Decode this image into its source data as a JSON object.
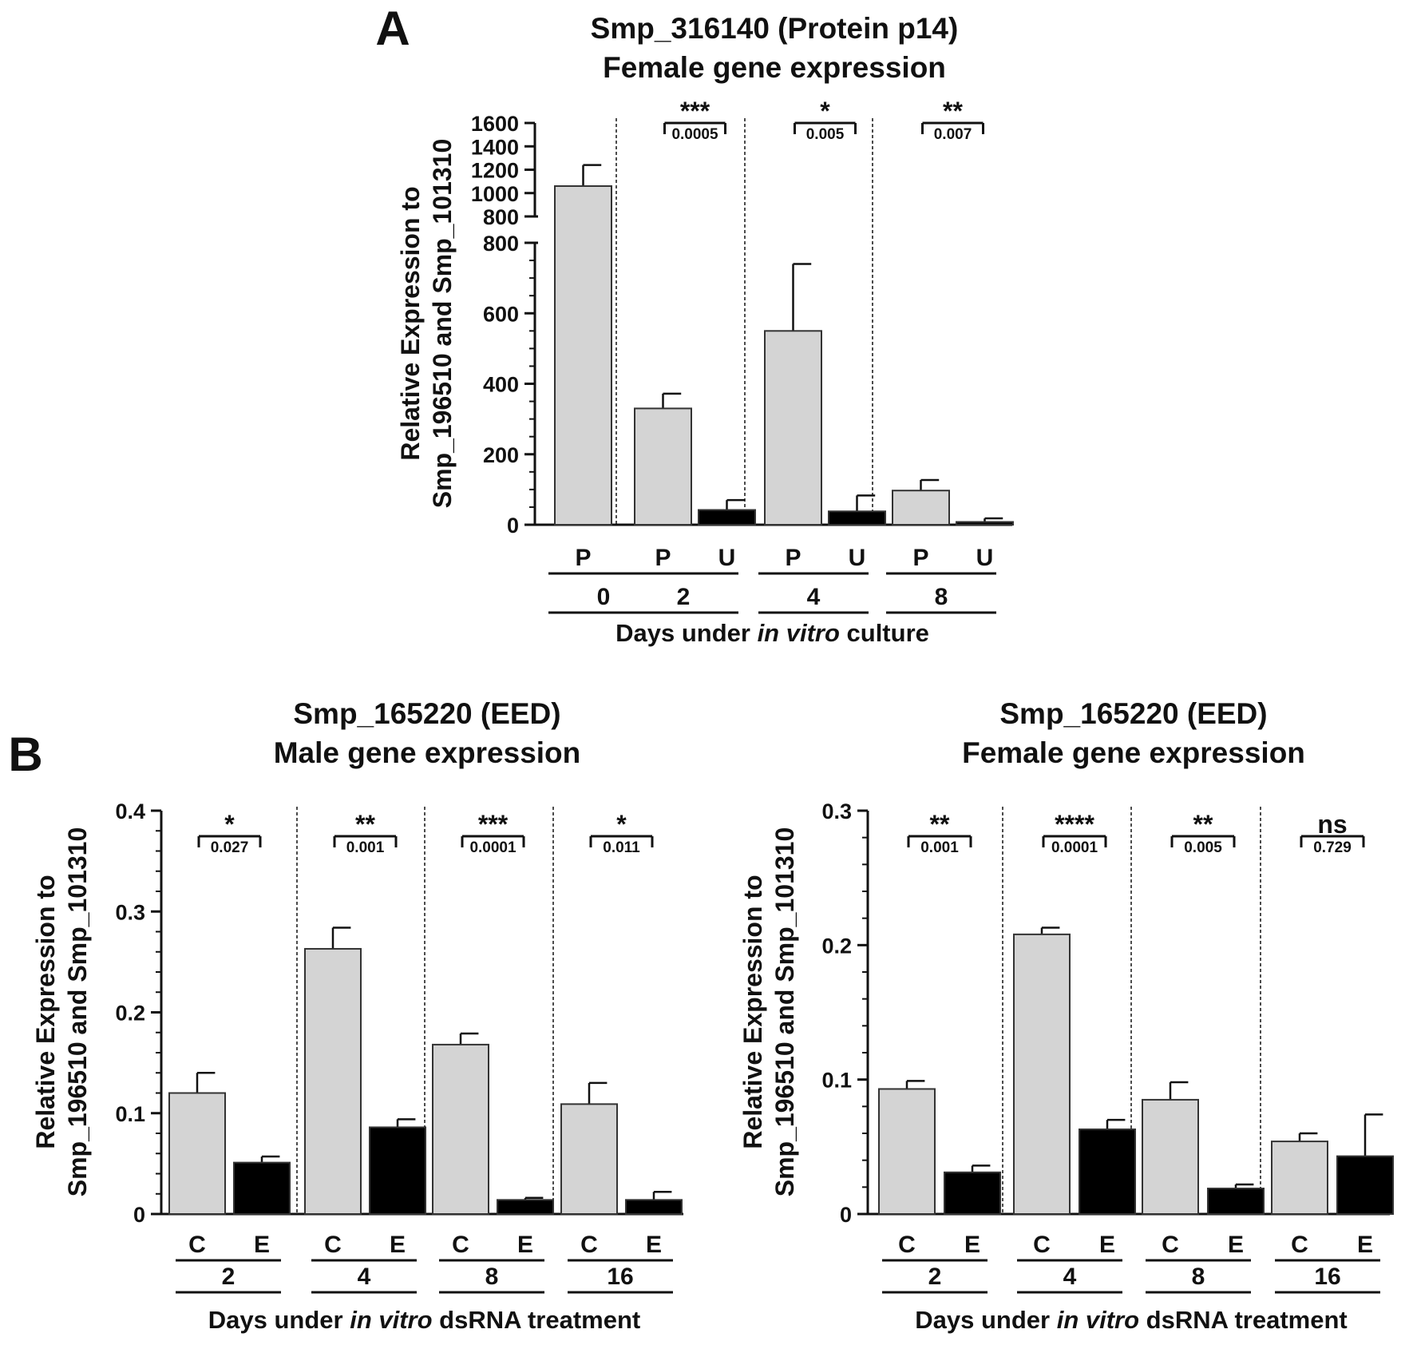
{
  "chart_data": [
    {
      "panel": "A",
      "type": "bar",
      "title": [
        "Smp_316140 (Protein p14)",
        "Female gene expression"
      ],
      "ylabel": [
        "Relative Expression to",
        "Smp_196510 and Smp_101310"
      ],
      "xlabel": {
        "prefix": "Days under ",
        "italic": "in vitro",
        "suffix": " culture"
      },
      "y_axis": {
        "broken": true,
        "lower_range": [
          0,
          800
        ],
        "lower_ticks": [
          0,
          200,
          400,
          600,
          800
        ],
        "upper_range": [
          800,
          1600
        ],
        "upper_ticks": [
          800,
          1000,
          1200,
          1400,
          1600
        ]
      },
      "series_colors": {
        "P": "#d4d4d4",
        "U": "#000000"
      },
      "groups": [
        {
          "day": "0",
          "bars": [
            {
              "label": "P",
              "value": 1060,
              "error": 180
            }
          ],
          "sig": null
        },
        {
          "day": "2",
          "bars": [
            {
              "label": "P",
              "value": 330,
              "error": 42
            },
            {
              "label": "U",
              "value": 42,
              "error": 28
            }
          ],
          "sig": {
            "stars": "***",
            "p": "0.0005"
          }
        },
        {
          "day": "4",
          "bars": [
            {
              "label": "P",
              "value": 550,
              "error": 190
            },
            {
              "label": "U",
              "value": 38,
              "error": 45
            }
          ],
          "sig": {
            "stars": "*",
            "p": "0.005"
          }
        },
        {
          "day": "8",
          "bars": [
            {
              "label": "P",
              "value": 97,
              "error": 30
            },
            {
              "label": "U",
              "value": 8,
              "error": 10
            }
          ],
          "sig": {
            "stars": "**",
            "p": "0.007"
          }
        }
      ]
    },
    {
      "panel": "B",
      "type": "bar",
      "title": [
        "Smp_165220 (EED)",
        "Male gene expression"
      ],
      "ylabel": [
        "Relative Expression to",
        "Smp_196510 and Smp_101310"
      ],
      "xlabel": {
        "prefix": "Days under ",
        "italic": "in vitro",
        "suffix": " dsRNA treatment"
      },
      "y_axis": {
        "range": [
          0,
          0.4
        ],
        "ticks": [
          0,
          0.1,
          0.2,
          0.3,
          0.4
        ],
        "tick_labels": [
          "0",
          "0.1",
          "0.2",
          "0.3",
          "0.4"
        ]
      },
      "series_colors": {
        "C": "#d4d4d4",
        "E": "#000000"
      },
      "groups": [
        {
          "day": "2",
          "bars": [
            {
              "label": "C",
              "value": 0.12,
              "error": 0.02
            },
            {
              "label": "E",
              "value": 0.051,
              "error": 0.006
            }
          ],
          "sig": {
            "stars": "*",
            "p": "0.027"
          }
        },
        {
          "day": "4",
          "bars": [
            {
              "label": "C",
              "value": 0.263,
              "error": 0.021
            },
            {
              "label": "E",
              "value": 0.086,
              "error": 0.008
            }
          ],
          "sig": {
            "stars": "**",
            "p": "0.001"
          }
        },
        {
          "day": "8",
          "bars": [
            {
              "label": "C",
              "value": 0.168,
              "error": 0.011
            },
            {
              "label": "E",
              "value": 0.014,
              "error": 0.002
            }
          ],
          "sig": {
            "stars": "***",
            "p": "0.0001"
          }
        },
        {
          "day": "16",
          "bars": [
            {
              "label": "C",
              "value": 0.109,
              "error": 0.021
            },
            {
              "label": "E",
              "value": 0.014,
              "error": 0.008
            }
          ],
          "sig": {
            "stars": "*",
            "p": "0.011"
          }
        }
      ]
    },
    {
      "panel": "",
      "type": "bar",
      "title": [
        "Smp_165220 (EED)",
        "Female gene expression"
      ],
      "ylabel": [
        "Relative Expression to",
        "Smp_196510 and Smp_101310"
      ],
      "xlabel": {
        "prefix": "Days under ",
        "italic": "in vitro",
        "suffix": " dsRNA treatment"
      },
      "y_axis": {
        "range": [
          0,
          0.3
        ],
        "ticks": [
          0,
          0.1,
          0.2,
          0.3
        ],
        "tick_labels": [
          "0",
          "0.1",
          "0.2",
          "0.3"
        ]
      },
      "series_colors": {
        "C": "#d4d4d4",
        "E": "#000000"
      },
      "groups": [
        {
          "day": "2",
          "bars": [
            {
              "label": "C",
              "value": 0.093,
              "error": 0.006
            },
            {
              "label": "E",
              "value": 0.031,
              "error": 0.005
            }
          ],
          "sig": {
            "stars": "**",
            "p": "0.001"
          }
        },
        {
          "day": "4",
          "bars": [
            {
              "label": "C",
              "value": 0.208,
              "error": 0.005
            },
            {
              "label": "E",
              "value": 0.063,
              "error": 0.007
            }
          ],
          "sig": {
            "stars": "****",
            "p": "0.0001"
          }
        },
        {
          "day": "8",
          "bars": [
            {
              "label": "C",
              "value": 0.085,
              "error": 0.013
            },
            {
              "label": "E",
              "value": 0.019,
              "error": 0.003
            }
          ],
          "sig": {
            "stars": "**",
            "p": "0.005"
          }
        },
        {
          "day": "16",
          "bars": [
            {
              "label": "C",
              "value": 0.054,
              "error": 0.006
            },
            {
              "label": "E",
              "value": 0.043,
              "error": 0.031
            }
          ],
          "sig": {
            "stars": "ns",
            "p": "0.729"
          }
        }
      ]
    }
  ]
}
